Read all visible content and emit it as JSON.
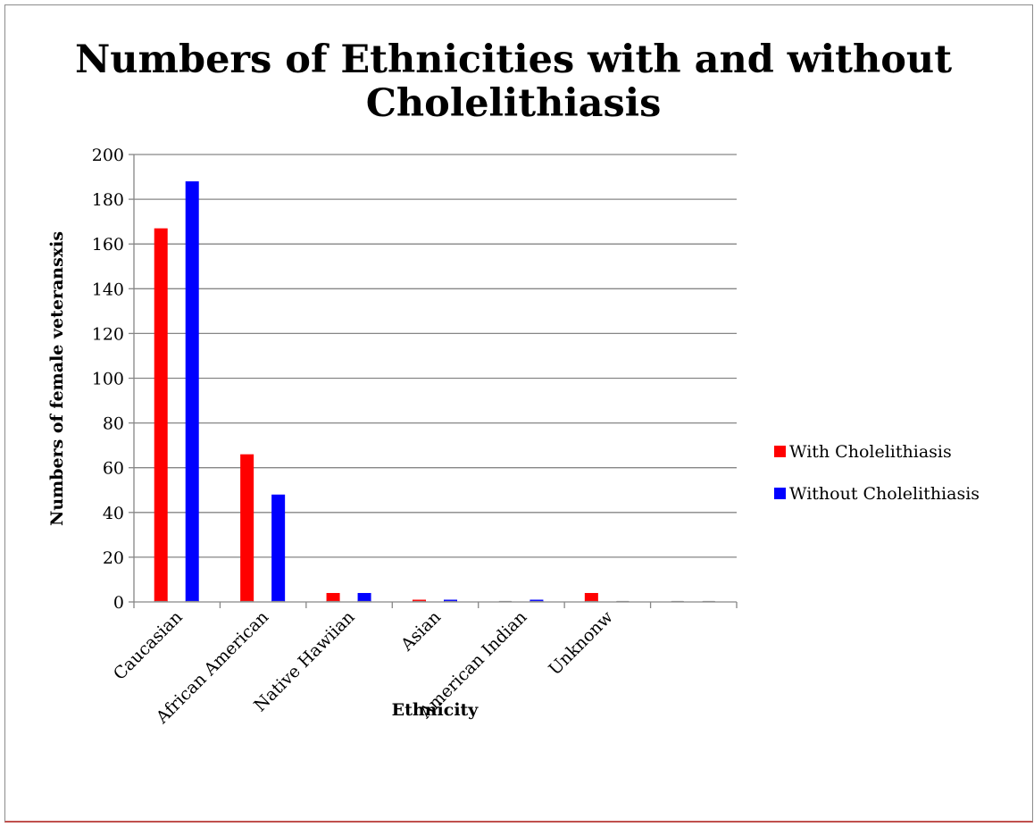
{
  "chart_data": {
    "type": "bar",
    "title_lines": [
      "Numbers of Ethnicities with and without",
      "Cholelithiasis"
    ],
    "xlabel": "Ethnicity",
    "ylabel": "Numbers of female veteransxis",
    "ylim": [
      0,
      200
    ],
    "yticks": [
      0,
      20,
      40,
      60,
      80,
      100,
      120,
      140,
      160,
      180,
      200
    ],
    "grid": true,
    "legend_position": "right",
    "categories": [
      "Caucasian",
      "African American",
      "Native Hawiian",
      "Asian",
      "American Indian",
      "Unknonw",
      ""
    ],
    "series": [
      {
        "name": "With Cholelithiasis",
        "color": "#ff0000",
        "values": [
          167,
          66,
          4,
          1,
          0,
          4,
          0
        ]
      },
      {
        "name": "Without Cholelithiasis",
        "color": "#0000ff",
        "values": [
          188,
          48,
          4,
          1,
          1,
          0,
          0
        ]
      }
    ]
  }
}
